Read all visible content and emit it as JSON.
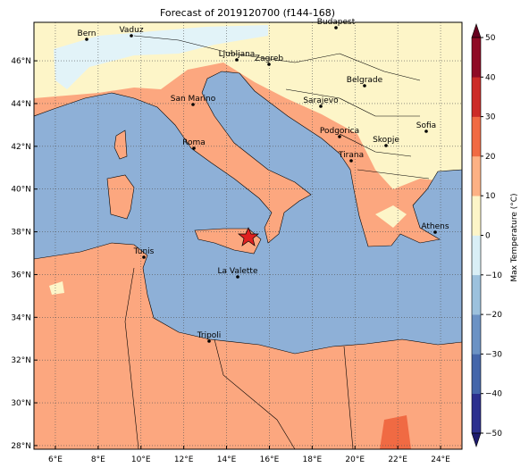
{
  "title": "Forecast of 2019120700 (f144-168)",
  "map": {
    "xlim": [
      5,
      25
    ],
    "ylim": [
      27.83,
      47.8
    ],
    "x_ticks": [
      {
        "value": 6,
        "label": "6°E"
      },
      {
        "value": 8,
        "label": "8°E"
      },
      {
        "value": 10,
        "label": "10°E"
      },
      {
        "value": 12,
        "label": "12°E"
      },
      {
        "value": 14,
        "label": "14°E"
      },
      {
        "value": 16,
        "label": "16°E"
      },
      {
        "value": 18,
        "label": "18°E"
      },
      {
        "value": 20,
        "label": "20°E"
      },
      {
        "value": 22,
        "label": "22°E"
      },
      {
        "value": 24,
        "label": "24°E"
      }
    ],
    "y_ticks": [
      {
        "value": 28,
        "label": "28°N"
      },
      {
        "value": 30,
        "label": "30°N"
      },
      {
        "value": 32,
        "label": "32°N"
      },
      {
        "value": 34,
        "label": "34°N"
      },
      {
        "value": 36,
        "label": "36°N"
      },
      {
        "value": 38,
        "label": "38°N"
      },
      {
        "value": 40,
        "label": "40°N"
      },
      {
        "value": 42,
        "label": "42°N"
      },
      {
        "value": 44,
        "label": "44°N"
      },
      {
        "value": 46,
        "label": "46°N"
      }
    ],
    "cities": [
      "Bern",
      "Vaduz",
      "Budapest",
      "Ljubljana",
      "Zagreb",
      "Belgrade",
      "San Marino",
      "Sarajevo",
      "Sofia",
      "Roma",
      "Podgorica",
      "Skopje",
      "Tirana",
      "Athens",
      "Tunis",
      "La Valette",
      "Tripoli"
    ]
  },
  "colorbar": {
    "label": "Max Temperature (°C)",
    "ticks": [
      {
        "value": -50,
        "label": "−50"
      },
      {
        "value": -40,
        "label": "−40"
      },
      {
        "value": -30,
        "label": "−30"
      },
      {
        "value": -20,
        "label": "−20"
      },
      {
        "value": -10,
        "label": "−10"
      },
      0,
      10,
      20,
      30,
      40,
      50
    ],
    "colors": [
      "#2b2f8e",
      "#4466aa",
      "#6b92c4",
      "#9cc1dd",
      "#d9eff6",
      "#fdf5c8",
      "#fdb184",
      "#f06a43",
      "#cc2b27",
      "#8f0b25"
    ],
    "extend_colors": [
      "#1d1b6e",
      "#67001f"
    ]
  }
}
